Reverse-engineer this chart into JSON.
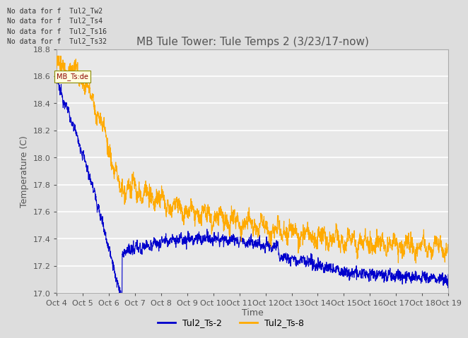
{
  "title": "MB Tule Tower: Tule Temps 2 (3/23/17-now)",
  "xlabel": "Time",
  "ylabel": "Temperature (C)",
  "ylim": [
    17.0,
    18.8
  ],
  "yticks": [
    17.0,
    17.2,
    17.4,
    17.6,
    17.8,
    18.0,
    18.2,
    18.4,
    18.6,
    18.8
  ],
  "xtick_labels": [
    "Oct 4",
    "Oct 5",
    "Oct 6",
    "Oct 7",
    "Oct 8",
    "Oct 9",
    "Oct 10",
    "Oct 11",
    "Oct 12",
    "Oct 13",
    "Oct 14",
    "Oct 15",
    "Oct 16",
    "Oct 17",
    "Oct 18",
    "Oct 19"
  ],
  "no_data_labels": [
    "No data for f  Tul2_Tw2",
    "No data for f  Tul2_Ts4",
    "No data for f  Tul2_Ts16",
    "No data for f  Tul2_Ts32"
  ],
  "tooltip_text": "MB_Ts:de",
  "legend_entries": [
    "Tul2_Ts-2",
    "Tul2_Ts-8"
  ],
  "line_colors": [
    "#0000cc",
    "#ffaa00"
  ],
  "fig_bg_color": "#dddddd",
  "plot_bg_color": "#e8e8e8",
  "grid_color": "#ffffff",
  "label_color": "#555555",
  "n_points": 2000
}
